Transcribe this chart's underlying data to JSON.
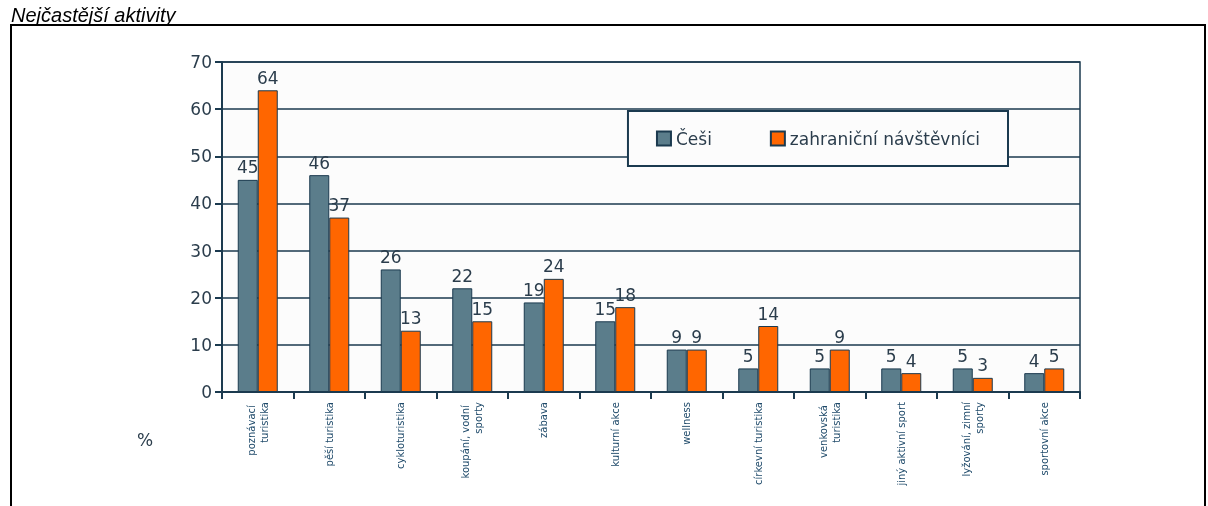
{
  "chart_data": {
    "type": "bar",
    "title": "Nejčastější aktivity",
    "ylabel": "%",
    "categories": [
      "poznávací turistika",
      "pěší turistika",
      "cykloturistika",
      "koupání, vodní sporty",
      "zábava",
      "kulturní akce",
      "wellness",
      "církevní turistika",
      "venkovská turistika",
      "jiný aktivní sport",
      "lyžování, zimní sporty",
      "sportovní akce"
    ],
    "series": [
      {
        "name": "Češi",
        "color": "#5b7d8b",
        "values": [
          45,
          46,
          26,
          22,
          19,
          15,
          9,
          5,
          5,
          5,
          5,
          4
        ]
      },
      {
        "name": "zahraniční návštěvníci",
        "color": "#ff6600",
        "values": [
          64,
          37,
          13,
          15,
          24,
          18,
          9,
          14,
          9,
          4,
          3,
          5
        ]
      }
    ],
    "ylim": [
      0,
      70
    ],
    "yticks": [
      0,
      10,
      20,
      30,
      40,
      50,
      60,
      70
    ],
    "grid": "y",
    "legend": "top right",
    "data_labels": true
  }
}
